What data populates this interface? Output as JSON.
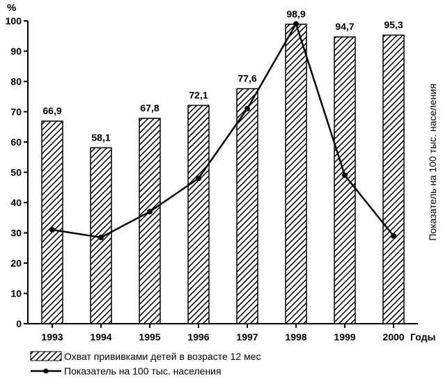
{
  "chart_data": {
    "type": "bar",
    "categories": [
      "1993",
      "1994",
      "1995",
      "1996",
      "1997",
      "1998",
      "1999",
      "2000"
    ],
    "series": [
      {
        "name": "Охват прививками детей в возрасте 12 мес",
        "type": "bar",
        "values": [
          66.9,
          58.1,
          67.8,
          72.1,
          77.6,
          98.9,
          94.7,
          95.3
        ],
        "labels": [
          "66,9",
          "58,1",
          "67,8",
          "72,1",
          "77,6",
          "98,9",
          "94,7",
          "95,3"
        ]
      },
      {
        "name": "Показатель на 100 тыс. населения",
        "type": "line",
        "values": [
          31,
          28.5,
          37,
          48,
          71,
          99,
          49,
          29
        ]
      }
    ],
    "title": "",
    "ylabel": "%",
    "xlabel": "Годы",
    "y2label": "Показатель на 100 тыс. населения",
    "ylim": [
      0,
      100
    ],
    "yticks": [
      0,
      10,
      20,
      30,
      40,
      50,
      60,
      70,
      80,
      90,
      100
    ],
    "legend": "bottom-left",
    "grid": false
  }
}
